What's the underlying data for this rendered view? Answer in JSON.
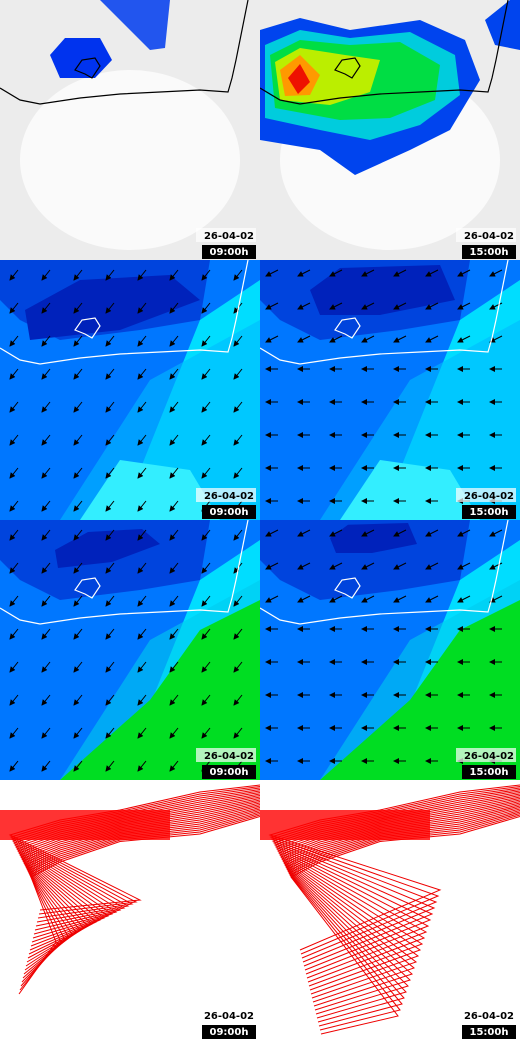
{
  "panels": [
    {
      "date": "26-04-02",
      "time": "09:00h"
    },
    {
      "date": "26-04-02",
      "time": "15:00h"
    },
    {
      "date": "26-04-02",
      "time": "09:00h"
    },
    {
      "date": "26-04-02",
      "time": "15:00h"
    },
    {
      "date": "26-04-02",
      "time": "09:00h"
    },
    {
      "date": "26-04-02",
      "time": "15:00h"
    },
    {
      "date": "26-04-02",
      "time": "09:00h"
    },
    {
      "date": "26-04-02",
      "time": "15:00h"
    }
  ]
}
